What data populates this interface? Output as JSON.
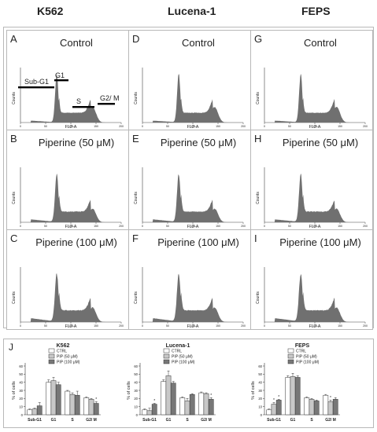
{
  "columns": [
    "K562",
    "Lucena-1",
    "FEPS"
  ],
  "histograms": [
    {
      "letter": "A",
      "title": "Control",
      "regions": [
        "Sub-G1",
        "G1",
        "S",
        "G2/ M"
      ],
      "profile": "control"
    },
    {
      "letter": "D",
      "title": "Control",
      "profile": "control"
    },
    {
      "letter": "G",
      "title": "Control",
      "profile": "control"
    },
    {
      "letter": "B",
      "title": "Piperine (50 μM)",
      "profile": "pip50"
    },
    {
      "letter": "E",
      "title": "Piperine (50 μM)",
      "profile": "pip50"
    },
    {
      "letter": "H",
      "title": "Piperine (50 μM)",
      "profile": "pip50"
    },
    {
      "letter": "C",
      "title": "Piperine (100 μM)",
      "profile": "pip100"
    },
    {
      "letter": "F",
      "title": "Piperine (100 μM)",
      "profile": "pip100"
    },
    {
      "letter": "I",
      "title": "Piperine (100 μM)",
      "profile": "pip100"
    }
  ],
  "histogram_axis": {
    "ylabel": "Counts",
    "xlabel": "FL2-A",
    "xticks": [
      0,
      50,
      100,
      150,
      200
    ],
    "xlim": [
      0,
      200
    ]
  },
  "panel_J_letter": "J",
  "chart_data": [
    {
      "type": "bar",
      "title": "K562",
      "ylabel": "% of cells",
      "categories": [
        "Sub-G1",
        "G1",
        "S",
        "G2/ M"
      ],
      "ylim": [
        0,
        60
      ],
      "yticks": [
        0,
        10,
        20,
        30,
        40,
        50,
        60
      ],
      "series": [
        {
          "name": "CTRL",
          "values": [
            6,
            40,
            29,
            21
          ]
        },
        {
          "name": "PIP (50 μM)",
          "values": [
            7,
            42,
            25,
            19
          ]
        },
        {
          "name": "PIP (100 μM)",
          "values": [
            11,
            37,
            24,
            14
          ]
        }
      ],
      "errors": [
        [
          1,
          3,
          1,
          1
        ],
        [
          1,
          4,
          2,
          1
        ],
        [
          4,
          3,
          5,
          2
        ]
      ],
      "significant": [
        [
          3,
          2
        ]
      ]
    },
    {
      "type": "bar",
      "title": "Lucena-1",
      "ylabel": "% of cells",
      "categories": [
        "Sub-G1",
        "G1",
        "S",
        "G2/ M"
      ],
      "ylim": [
        0,
        60
      ],
      "yticks": [
        0,
        10,
        20,
        30,
        40,
        50,
        60
      ],
      "series": [
        {
          "name": "CTRL",
          "values": [
            6,
            41,
            21,
            27
          ]
        },
        {
          "name": "PIP (50 μM)",
          "values": [
            5,
            48,
            17,
            26
          ]
        },
        {
          "name": "PIP (100 μM)",
          "values": [
            13,
            39,
            25,
            19
          ]
        }
      ],
      "errors": [
        [
          1,
          2,
          1,
          1
        ],
        [
          3,
          6,
          3,
          1
        ],
        [
          1,
          2,
          1,
          2
        ]
      ],
      "significant": [
        [
          0,
          2
        ],
        [
          3,
          2
        ]
      ]
    },
    {
      "type": "bar",
      "title": "FEPS",
      "ylabel": "% of cells",
      "categories": [
        "Sub-G1",
        "G1",
        "S",
        "G2/ M"
      ],
      "ylim": [
        0,
        60
      ],
      "yticks": [
        0,
        10,
        20,
        30,
        40,
        50,
        60
      ],
      "series": [
        {
          "name": "CTRL",
          "values": [
            6,
            46,
            21,
            24
          ]
        },
        {
          "name": "PIP (50 μM)",
          "values": [
            13,
            47,
            19,
            16
          ]
        },
        {
          "name": "PIP (100 μM)",
          "values": [
            18,
            46,
            17,
            19
          ]
        }
      ],
      "errors": [
        [
          1,
          2,
          1,
          1
        ],
        [
          2,
          4,
          1,
          2
        ],
        [
          1,
          2,
          1,
          2
        ]
      ],
      "significant": [
        [
          0,
          1
        ],
        [
          0,
          2
        ],
        [
          3,
          1
        ]
      ]
    }
  ],
  "colors": {
    "hist_fill": "#707070",
    "ctrl": "#ffffff",
    "pip50": "#c8c8c8",
    "pip100": "#777777",
    "border": "#b8b8b8",
    "text": "#222222"
  }
}
